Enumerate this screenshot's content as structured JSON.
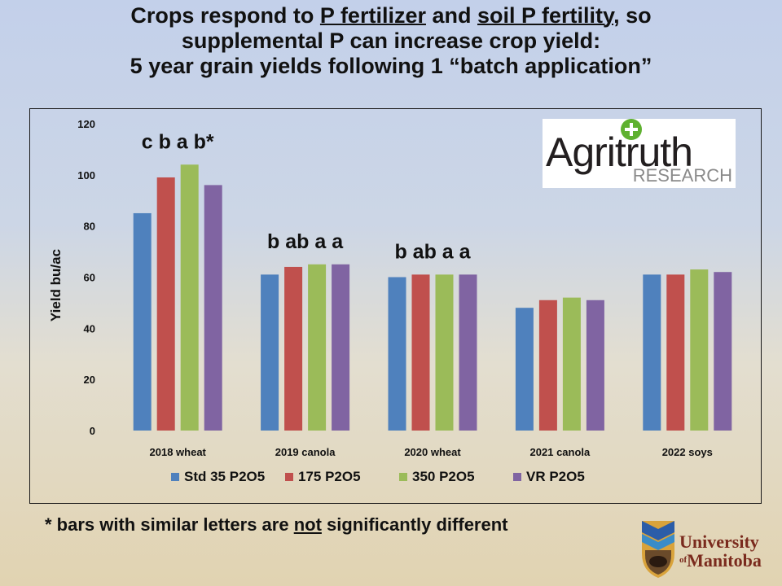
{
  "title": {
    "line1_a": "Crops respond to ",
    "line1_b": "P fertilizer",
    "line1_c": " and ",
    "line1_d": "soil P fertility",
    "line1_e": ", so",
    "line2": "supplemental P can increase crop yield:",
    "line3": "5 year grain yields following 1 “batch application”"
  },
  "footnote": {
    "prefix": "* bars with similar letters are ",
    "underlined": "not",
    "suffix": " significantly different"
  },
  "agritruth_logo": {
    "word": "Agritruth",
    "sub": "RESEARCH",
    "icon": "green-plus-icon"
  },
  "university_logo": {
    "line1": "University",
    "prefix": "of",
    "line2": "Manitoba",
    "icon": "bison-shield-icon"
  },
  "colors": {
    "std35": "#4f81bd",
    "p175": "#c0504d",
    "p350": "#9bbb59",
    "vr": "#8064a2"
  },
  "chart_data": {
    "type": "bar",
    "title": "",
    "xlabel": "",
    "ylabel": "Yield bu/ac",
    "ylim": [
      0,
      120
    ],
    "yticks": [
      0,
      20,
      40,
      60,
      80,
      100,
      120
    ],
    "grid": false,
    "legend_position": "bottom",
    "categories": [
      "2018 wheat",
      "2019 canola",
      "2020 wheat",
      "2021 canola",
      "2022 soys"
    ],
    "series": [
      {
        "name": "Std 35 P2O5",
        "color": "#4f81bd",
        "values": [
          85,
          61,
          60,
          48,
          61
        ]
      },
      {
        "name": "175 P2O5",
        "color": "#c0504d",
        "values": [
          99,
          64,
          61,
          51,
          61
        ]
      },
      {
        "name": "350 P2O5",
        "color": "#9bbb59",
        "values": [
          104,
          65,
          61,
          52,
          63
        ]
      },
      {
        "name": "VR P2O5",
        "color": "#8064a2",
        "values": [
          96,
          65,
          61,
          51,
          62
        ]
      }
    ],
    "annotations": [
      {
        "category": "2018 wheat",
        "text": "c  b  a b*"
      },
      {
        "category": "2019 canola",
        "text": "b ab a a"
      },
      {
        "category": "2020 wheat",
        "text": "b ab a a"
      }
    ]
  }
}
